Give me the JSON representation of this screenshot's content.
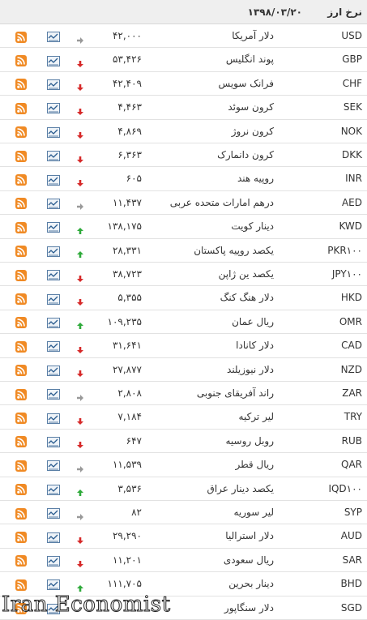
{
  "header": {
    "title": "نرخ ارز",
    "date": "۱۳۹۸/۰۳/۲۰"
  },
  "table": {
    "rows": [
      {
        "code": "USD",
        "name": "دلار آمریکا",
        "value": "۴۲,۰۰۰",
        "trend": "flat"
      },
      {
        "code": "GBP",
        "name": "پوند انگلیس",
        "value": "۵۳,۴۲۶",
        "trend": "down"
      },
      {
        "code": "CHF",
        "name": "فرانک سویس",
        "value": "۴۲,۴۰۹",
        "trend": "down"
      },
      {
        "code": "SEK",
        "name": "کرون سوئد",
        "value": "۴,۴۶۳",
        "trend": "down"
      },
      {
        "code": "NOK",
        "name": "کرون نروژ",
        "value": "۴,۸۶۹",
        "trend": "down"
      },
      {
        "code": "DKK",
        "name": "کرون دانمارک",
        "value": "۶,۳۶۳",
        "trend": "down"
      },
      {
        "code": "INR",
        "name": "روپیه هند",
        "value": "۶۰۵",
        "trend": "down"
      },
      {
        "code": "AED",
        "name": "درهم امارات متحده عربی",
        "value": "۱۱,۴۳۷",
        "trend": "flat"
      },
      {
        "code": "KWD",
        "name": "دینار کویت",
        "value": "۱۳۸,۱۷۵",
        "trend": "up"
      },
      {
        "code": "PKR۱۰۰",
        "name": "یکصد روپیه پاکستان",
        "value": "۲۸,۳۳۱",
        "trend": "up"
      },
      {
        "code": "JPY۱۰۰",
        "name": "یکصد ین ژاپن",
        "value": "۳۸,۷۲۳",
        "trend": "down"
      },
      {
        "code": "HKD",
        "name": "دلار هنگ کنگ",
        "value": "۵,۳۵۵",
        "trend": "down"
      },
      {
        "code": "OMR",
        "name": "ریال عمان",
        "value": "۱۰۹,۲۳۵",
        "trend": "up"
      },
      {
        "code": "CAD",
        "name": "دلار کانادا",
        "value": "۳۱,۶۴۱",
        "trend": "down"
      },
      {
        "code": "NZD",
        "name": "دلار نیوزیلند",
        "value": "۲۷,۸۷۷",
        "trend": "down"
      },
      {
        "code": "ZAR",
        "name": "راند آفریقای جنوبی",
        "value": "۲,۸۰۸",
        "trend": "flat"
      },
      {
        "code": "TRY",
        "name": "لیر ترکیه",
        "value": "۷,۱۸۴",
        "trend": "down"
      },
      {
        "code": "RUB",
        "name": "روبل روسیه",
        "value": "۶۴۷",
        "trend": "down"
      },
      {
        "code": "QAR",
        "name": "ریال قطر",
        "value": "۱۱,۵۳۹",
        "trend": "flat"
      },
      {
        "code": "IQD۱۰۰",
        "name": "یکصد دینار عراق",
        "value": "۳,۵۳۶",
        "trend": "up"
      },
      {
        "code": "SYP",
        "name": "لیر سوریه",
        "value": "۸۲",
        "trend": "flat"
      },
      {
        "code": "AUD",
        "name": "دلار استرالیا",
        "value": "۲۹,۲۹۰",
        "trend": "down"
      },
      {
        "code": "SAR",
        "name": "ریال سعودی",
        "value": "۱۱,۲۰۱",
        "trend": "down"
      },
      {
        "code": "BHD",
        "name": "دینار بحرین",
        "value": "۱۱۱,۷۰۵",
        "trend": "up"
      },
      {
        "code": "SGD",
        "name": "دلار سنگاپور"
      }
    ]
  },
  "watermark": "Iran Economist"
}
